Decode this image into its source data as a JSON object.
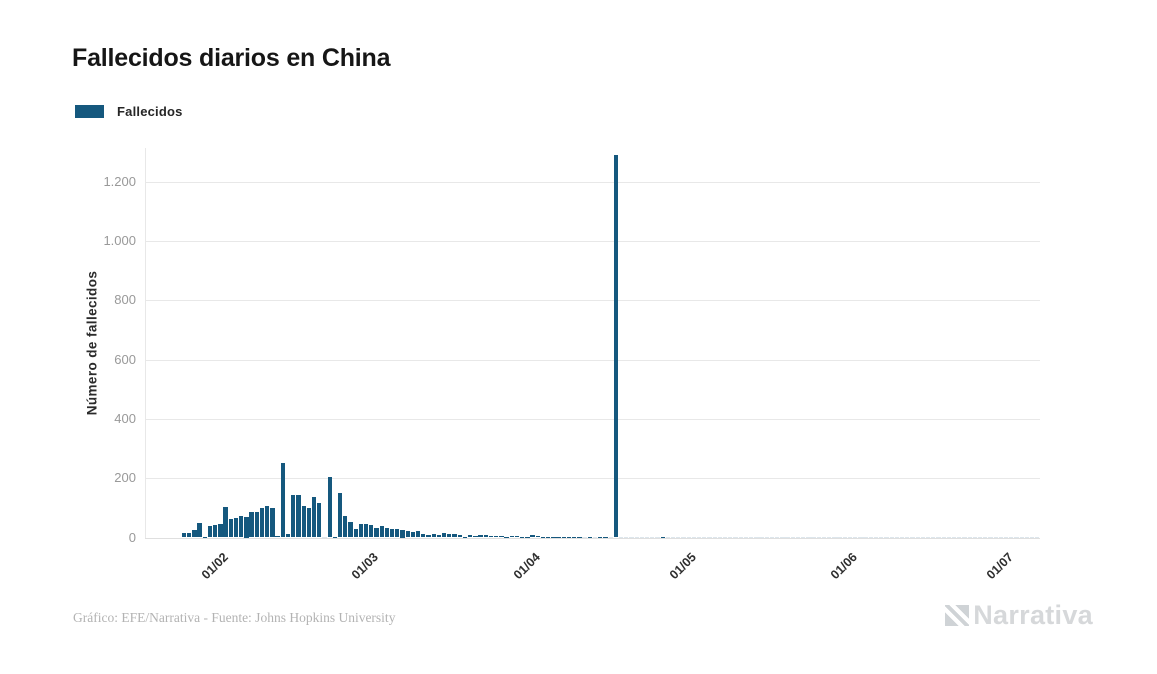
{
  "page": {
    "title": "Fallecidos diarios en China",
    "source_line": "Gráfico: EFE/Narrativa - Fuente: Johns Hopkins University",
    "logo_text": "Narrativa"
  },
  "colors": {
    "bar": "#15587e",
    "zero_bar": "#dde6ec",
    "grid": "#e8e8e8",
    "axis_line": "#dfdfdf",
    "y_tick_text": "#999999",
    "x_tick_text": "#2e2e2e",
    "source_text": "#b3b3b3",
    "logo": "#d6d8da"
  },
  "chart_data": {
    "type": "bar",
    "title": "Fallecidos diarios en China",
    "xlabel": "",
    "ylabel": "Número de fallecidos",
    "grid": true,
    "legend_position": "top-left",
    "ylim": [
      0,
      1314
    ],
    "y_ticks": [
      {
        "value": 0,
        "label": "0"
      },
      {
        "value": 200,
        "label": "200"
      },
      {
        "value": 400,
        "label": "400"
      },
      {
        "value": 600,
        "label": "600"
      },
      {
        "value": 800,
        "label": "800"
      },
      {
        "value": 1000,
        "label": "1.000"
      },
      {
        "value": 1200,
        "label": "1.200"
      }
    ],
    "x_ticks": [
      {
        "index": 7,
        "label": "01/02"
      },
      {
        "index": 36,
        "label": "01/03"
      },
      {
        "index": 67,
        "label": "01/04"
      },
      {
        "index": 97,
        "label": "01/05"
      },
      {
        "index": 128,
        "label": "01/06"
      },
      {
        "index": 158,
        "label": "01/07"
      }
    ],
    "x_start": "25/01/2020",
    "x_end": "07/07/2020",
    "frequency": "daily",
    "peak_value": 1290,
    "peak_date": "17/04/2020",
    "series": [
      {
        "name": "Fallecidos",
        "color": "#15587e",
        "values": [
          16,
          14,
          26,
          49,
          1,
          39,
          42,
          46,
          102,
          64,
          66,
          72,
          70,
          85,
          87,
          100,
          107,
          100,
          5,
          252,
          11,
          143,
          142,
          105,
          98,
          136,
          118,
          0,
          205,
          2,
          150,
          71,
          52,
          29,
          44,
          47,
          42,
          31,
          38,
          31,
          30,
          28,
          27,
          22,
          17,
          22,
          11,
          7,
          13,
          10,
          14,
          13,
          11,
          8,
          3,
          7,
          6,
          9,
          7,
          4,
          6,
          5,
          3,
          5,
          4,
          2,
          1,
          7,
          4,
          3,
          1,
          3,
          2,
          2,
          2,
          1,
          1,
          0,
          1,
          0,
          1,
          1,
          0,
          1290,
          0,
          0,
          0,
          0,
          0,
          0,
          0,
          0,
          1,
          0,
          0,
          0,
          0,
          0,
          0,
          0,
          0,
          0,
          0,
          0,
          0,
          0,
          0,
          0,
          0,
          0,
          0,
          0,
          0,
          0,
          0,
          0,
          0,
          0,
          0,
          0,
          0,
          0,
          0,
          0,
          0,
          0,
          0,
          0,
          0,
          0,
          0,
          0,
          0,
          0,
          0,
          0,
          0,
          0,
          0,
          0,
          0,
          0,
          0,
          0,
          0,
          0,
          0,
          0,
          0,
          0,
          0,
          0,
          0,
          0,
          0,
          0,
          0,
          0,
          0,
          0,
          0,
          0,
          0,
          0,
          0
        ]
      }
    ]
  }
}
